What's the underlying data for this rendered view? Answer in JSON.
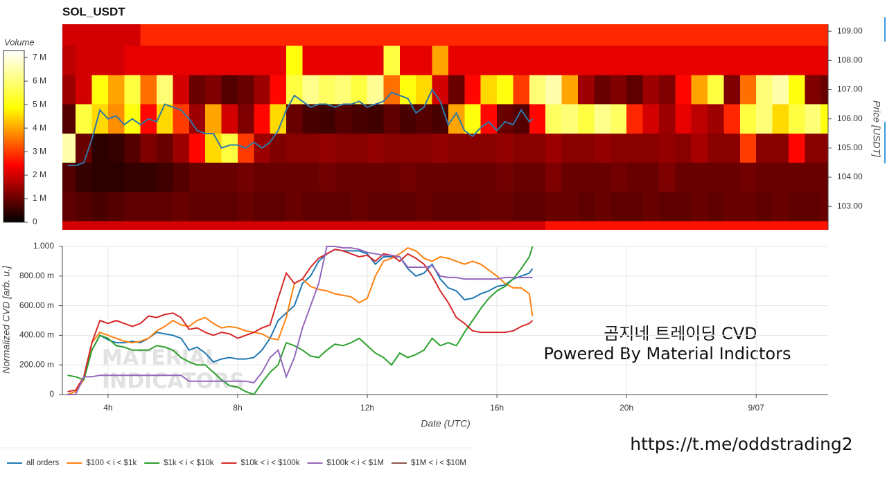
{
  "chart_data": [
    {
      "type": "heatmap",
      "title": "SOL_USDT",
      "y_label": "Price [USDT]",
      "colorbar_label": "Volume",
      "xlim": [
        2.59,
        26.22
      ],
      "ylim": [
        102.2,
        109.24
      ],
      "yticks": [
        {
          "value": 103,
          "label": "103.00"
        },
        {
          "value": 104,
          "label": "104.00"
        },
        {
          "value": 105,
          "label": "105.00"
        },
        {
          "value": 106,
          "label": "106.00"
        },
        {
          "value": 107,
          "label": "107.00"
        },
        {
          "value": 108,
          "label": "108.00"
        },
        {
          "value": 109,
          "label": "109.00"
        }
      ],
      "x_bins": [
        2.5,
        3,
        3.5,
        4,
        4.5,
        5,
        5.5,
        6,
        6.5,
        7,
        7.5,
        8,
        8.5,
        9,
        9.5,
        10,
        10.5,
        11,
        11.5,
        12,
        12.5,
        13,
        13.5,
        14,
        14.5,
        15,
        15.5,
        16,
        16.5,
        17,
        17.5,
        18,
        18.5,
        19,
        19.5,
        20,
        20.5,
        21,
        21.5,
        22,
        22.5,
        23,
        23.5,
        24,
        24.5,
        25,
        25.5,
        26,
        26.5
      ],
      "y_bins": [
        101.5,
        102.5,
        103.5,
        104.5,
        105.5,
        106.5,
        107.5,
        108.5,
        109.5
      ],
      "values": [
        [
          2,
          2,
          2,
          2,
          2,
          2,
          2,
          2,
          2,
          2,
          2,
          2,
          2,
          2,
          2,
          2,
          2,
          2,
          2,
          2,
          2,
          2,
          2,
          2,
          2,
          2,
          2,
          2,
          2,
          2,
          2.6,
          2.6,
          2.6,
          2.6,
          2.6,
          2.6,
          2.6,
          2.6,
          2.6,
          2.6,
          2.6,
          2.6,
          2.6,
          2.6,
          2.6,
          2.6,
          2.6,
          2.6
        ],
        [
          0.9,
          0.8,
          0.7,
          0.8,
          0.9,
          0.9,
          0.9,
          1,
          0.9,
          0.9,
          0.9,
          1,
          0.9,
          0.9,
          1,
          0.9,
          0.9,
          0.9,
          1,
          0.9,
          0.9,
          0.9,
          1,
          0.9,
          0.9,
          0.9,
          1,
          1,
          0.9,
          0.9,
          1,
          1,
          0.9,
          1,
          0.9,
          0.9,
          1,
          0.9,
          0.9,
          1,
          0.9,
          1,
          1,
          0.9,
          1,
          0.9,
          0.9,
          1
        ],
        [
          0.8,
          0.5,
          0.4,
          0.4,
          0.5,
          0.5,
          0.6,
          0.8,
          1,
          1,
          1,
          1.1,
          1,
          1,
          1,
          1,
          1.1,
          1,
          1,
          1,
          1,
          1.1,
          1,
          1,
          1,
          1,
          1,
          1.1,
          1,
          1,
          1.2,
          1,
          1,
          1,
          1.1,
          1,
          1,
          1.2,
          1,
          1,
          1,
          1,
          1.1,
          1,
          1,
          1,
          1,
          1
        ],
        [
          6.5,
          1,
          0.4,
          0.5,
          0.8,
          1.2,
          1,
          1.5,
          2.5,
          4.5,
          5.5,
          3,
          1.5,
          1.2,
          1.3,
          1.3,
          1.4,
          1.3,
          1.3,
          1.4,
          1.3,
          1.3,
          1.3,
          1.4,
          1.3,
          1.3,
          1.3,
          1.4,
          1.3,
          1.3,
          1.5,
          1.3,
          1.3,
          1.4,
          1.3,
          1.3,
          1.3,
          1.4,
          1.3,
          1.6,
          1.3,
          1.3,
          3,
          1.3,
          1.3,
          2.5,
          1.3,
          1.3
        ],
        [
          0.8,
          5.5,
          4.5,
          3.8,
          5,
          2.5,
          4.5,
          3,
          1.5,
          4,
          2,
          1.2,
          2.5,
          4.5,
          1,
          0.7,
          0.6,
          0.8,
          0.7,
          0.6,
          0.9,
          0.7,
          0.8,
          0.7,
          4,
          5,
          2.5,
          1,
          0.8,
          2.5,
          5.8,
          6,
          5.5,
          6.2,
          5.8,
          2.8,
          2,
          1.5,
          2.2,
          1.8,
          1.5,
          2.8,
          5.5,
          6,
          4.5,
          5.5,
          6,
          5
        ],
        [
          1.5,
          2,
          5,
          4,
          5.5,
          3.5,
          6,
          2,
          1,
          1.2,
          0.8,
          1,
          1.5,
          2.5,
          5.5,
          6.2,
          5.8,
          6,
          5.5,
          6.3,
          3.5,
          5,
          4.5,
          2,
          1,
          2.5,
          4.5,
          5,
          3,
          6,
          6.5,
          4,
          1.5,
          1,
          1.2,
          0.9,
          1.5,
          1.2,
          2.5,
          4,
          5.5,
          1.2,
          3.5,
          6,
          6.5,
          5,
          1.2,
          1
        ],
        [
          1.8,
          2,
          2,
          2,
          2.2,
          2.2,
          2.2,
          2.2,
          2.2,
          2.2,
          2.2,
          2.2,
          2.2,
          2.2,
          5,
          2.2,
          2.2,
          2.2,
          2.2,
          2.2,
          5.5,
          2.2,
          2.2,
          4,
          2.2,
          2.2,
          2.2,
          2.2,
          2.2,
          2.2,
          2.2,
          2.2,
          2.2,
          2.2,
          2.2,
          2.2,
          2.2,
          2.2,
          2.2,
          2.2,
          2.2,
          2.2,
          2.2,
          2.2,
          2.2,
          2.2,
          2.2,
          2.2
        ],
        [
          2,
          2,
          2,
          2,
          2,
          2.8,
          2.8,
          2.8,
          2.8,
          2.8,
          2.8,
          2.8,
          2.8,
          2.8,
          2.8,
          2.8,
          2.8,
          2.8,
          2.8,
          2.8,
          2.8,
          2.8,
          2.8,
          2.8,
          2.8,
          2.8,
          2.8,
          2.8,
          2.8,
          2.8,
          2.8,
          2.8,
          2.8,
          2.8,
          2.8,
          2.8,
          2.8,
          2.8,
          2.8,
          2.8,
          2.8,
          2.8,
          2.8,
          2.8,
          2.8,
          2.8,
          2.8,
          2.8
        ]
      ],
      "colors": [
        "#000000",
        "#ff0000",
        "#ffff00",
        "#ffffff"
      ],
      "clim": [
        0,
        7.3
      ],
      "cticks": [
        0,
        {
          "value": 1,
          "label": "1 M"
        },
        {
          "value": 2,
          "label": "2 M"
        },
        {
          "value": 3,
          "label": "3 M"
        },
        {
          "value": 4,
          "label": "4 M"
        },
        {
          "value": 5,
          "label": "5 M"
        },
        {
          "value": 6,
          "label": "6 M"
        },
        {
          "value": 7,
          "label": "7 M"
        }
      ],
      "line": {
        "color": "#2f78a8",
        "x": [
          2.75,
          3,
          3.25,
          3.5,
          3.75,
          4,
          4.25,
          4.5,
          4.75,
          5,
          5.25,
          5.5,
          5.75,
          6,
          6.25,
          6.5,
          6.75,
          7,
          7.25,
          7.5,
          7.75,
          8,
          8.25,
          8.5,
          8.75,
          9,
          9.25,
          9.5,
          9.75,
          10,
          10.25,
          10.5,
          10.75,
          11,
          11.25,
          11.5,
          11.75,
          12,
          12.25,
          12.5,
          12.75,
          13,
          13.25,
          13.5,
          13.75,
          14,
          14.25,
          14.5,
          14.75,
          15,
          15.25,
          15.5,
          15.75,
          16,
          16.25,
          16.5,
          16.75,
          17,
          17.1
        ],
        "values": [
          104.4,
          104.4,
          104.5,
          105.3,
          106.3,
          106.0,
          106.1,
          105.8,
          106.0,
          105.8,
          106.0,
          105.9,
          106.5,
          106.4,
          106.3,
          106.0,
          105.6,
          105.5,
          105.5,
          105.0,
          105.1,
          105.1,
          105.0,
          105.2,
          105.0,
          105.2,
          105.6,
          106.3,
          106.8,
          106.6,
          106.4,
          106.5,
          106.5,
          106.4,
          106.5,
          106.5,
          106.6,
          106.4,
          106.5,
          106.6,
          106.9,
          106.8,
          106.7,
          106.2,
          106.4,
          107.0,
          106.6,
          105.8,
          106.2,
          105.6,
          105.4,
          105.7,
          105.9,
          105.6,
          105.9,
          105.8,
          106.3,
          105.9,
          106.0
        ]
      }
    },
    {
      "type": "line",
      "x_label": "Date (UTC)",
      "y_label": "Normalized CVD [arb. u.]",
      "xlim": [
        2.59,
        26.22
      ],
      "xticks": [
        {
          "value": 4,
          "label": "4h"
        },
        {
          "value": 8,
          "label": "8h"
        },
        {
          "value": 12,
          "label": "12h"
        },
        {
          "value": 16,
          "label": "16h"
        },
        {
          "value": 20,
          "label": "20h"
        },
        {
          "value": 24,
          "label": "9/07"
        }
      ],
      "ylim": [
        0,
        1.0
      ],
      "yticks": [
        0,
        {
          "value": 0.2,
          "label": "200.00 m"
        },
        {
          "value": 0.4,
          "label": "400.00 m"
        },
        {
          "value": 0.6,
          "label": "600.00 m"
        },
        {
          "value": 0.8,
          "label": "800.00 m"
        },
        {
          "value": 1.0,
          "label": "1.000"
        }
      ],
      "grid": true,
      "legend": "bottom-left",
      "x": [
        2.75,
        3,
        3.25,
        3.5,
        3.75,
        4,
        4.25,
        4.5,
        4.75,
        5,
        5.25,
        5.5,
        5.75,
        6,
        6.25,
        6.5,
        6.75,
        7,
        7.25,
        7.5,
        7.75,
        8,
        8.25,
        8.5,
        8.75,
        9,
        9.25,
        9.5,
        9.75,
        10,
        10.25,
        10.5,
        10.75,
        11,
        11.25,
        11.5,
        11.75,
        12,
        12.25,
        12.5,
        12.75,
        13,
        13.25,
        13.5,
        13.75,
        14,
        14.25,
        14.5,
        14.75,
        15,
        15.25,
        15.5,
        15.75,
        16,
        16.25,
        16.5,
        16.75,
        17,
        17.1
      ],
      "series": [
        {
          "name": "all orders",
          "color": "#1f77b4",
          "values": [
            0,
            0.02,
            0.1,
            0.3,
            0.4,
            0.37,
            0.35,
            0.35,
            0.36,
            0.35,
            0.38,
            0.42,
            0.41,
            0.4,
            0.38,
            0.3,
            0.32,
            0.28,
            0.22,
            0.24,
            0.25,
            0.24,
            0.24,
            0.25,
            0.3,
            0.38,
            0.5,
            0.55,
            0.6,
            0.75,
            0.8,
            0.9,
            0.95,
            0.98,
            0.97,
            0.97,
            0.97,
            0.95,
            0.88,
            0.93,
            0.93,
            0.93,
            0.85,
            0.8,
            0.82,
            0.88,
            0.78,
            0.72,
            0.7,
            0.64,
            0.65,
            0.68,
            0.7,
            0.73,
            0.74,
            0.78,
            0.8,
            0.82,
            0.85
          ]
        },
        {
          "name": "$100 < i < $1k",
          "color": "#ff7f0e",
          "values": [
            0,
            0.02,
            0.1,
            0.35,
            0.42,
            0.4,
            0.38,
            0.36,
            0.35,
            0.36,
            0.38,
            0.43,
            0.46,
            0.5,
            0.47,
            0.46,
            0.5,
            0.52,
            0.48,
            0.45,
            0.46,
            0.45,
            0.43,
            0.42,
            0.41,
            0.38,
            0.37,
            0.52,
            0.75,
            0.78,
            0.73,
            0.71,
            0.7,
            0.68,
            0.67,
            0.66,
            0.62,
            0.65,
            0.8,
            0.9,
            0.92,
            0.95,
            0.99,
            0.97,
            0.92,
            0.9,
            0.93,
            0.92,
            0.9,
            0.88,
            0.9,
            0.88,
            0.84,
            0.8,
            0.75,
            0.72,
            0.72,
            0.68,
            0.53
          ]
        },
        {
          "name": "$1k < i < $10k",
          "color": "#2ca02c",
          "values": [
            0.13,
            0.12,
            0.1,
            0.3,
            0.4,
            0.38,
            0.33,
            0.32,
            0.3,
            0.3,
            0.3,
            0.33,
            0.32,
            0.3,
            0.25,
            0.22,
            0.2,
            0.2,
            0.15,
            0.1,
            0.06,
            0.05,
            0.02,
            0,
            0.08,
            0.15,
            0.2,
            0.35,
            0.33,
            0.3,
            0.26,
            0.25,
            0.3,
            0.34,
            0.33,
            0.35,
            0.38,
            0.33,
            0.28,
            0.25,
            0.2,
            0.28,
            0.25,
            0.27,
            0.3,
            0.38,
            0.33,
            0.35,
            0.33,
            0.42,
            0.5,
            0.58,
            0.65,
            0.7,
            0.73,
            0.78,
            0.85,
            0.93,
            1
          ]
        },
        {
          "name": "$10k < i < $100k",
          "color": "#d62728",
          "values": [
            0.02,
            0.03,
            0.12,
            0.35,
            0.5,
            0.48,
            0.5,
            0.48,
            0.46,
            0.48,
            0.53,
            0.52,
            0.54,
            0.55,
            0.52,
            0.44,
            0.45,
            0.42,
            0.4,
            0.42,
            0.41,
            0.38,
            0.4,
            0.42,
            0.45,
            0.47,
            0.65,
            0.82,
            0.75,
            0.78,
            0.86,
            0.92,
            0.95,
            0.98,
            0.97,
            0.95,
            0.93,
            0.94,
            0.9,
            0.95,
            0.94,
            0.9,
            0.95,
            0.92,
            0.88,
            0.8,
            0.7,
            0.62,
            0.52,
            0.48,
            0.43,
            0.42,
            0.42,
            0.42,
            0.42,
            0.43,
            0.46,
            0.48,
            0.5
          ]
        },
        {
          "name": "$100k < i < $1M",
          "color": "#9467bd",
          "values": [
            0,
            0,
            0.12,
            0.12,
            0.13,
            0.13,
            0.13,
            0.13,
            0.13,
            0.13,
            0.13,
            0.13,
            0.13,
            0.13,
            0.13,
            0.09,
            0.09,
            0.09,
            0.09,
            0.09,
            0.09,
            0.09,
            0.09,
            0.08,
            0.15,
            0.25,
            0.3,
            0.12,
            0.25,
            0.45,
            0.6,
            0.75,
            1,
            1,
            0.99,
            0.99,
            0.98,
            0.96,
            0.95,
            0.94,
            0.94,
            0.93,
            0.86,
            0.86,
            0.86,
            0.87,
            0.8,
            0.79,
            0.79,
            0.78,
            0.78,
            0.78,
            0.78,
            0.78,
            0.79,
            0.79,
            0.79,
            0.79,
            0.79
          ]
        },
        {
          "name": "$1M < i < $10M",
          "color": "#8c564b",
          "values": [
            null,
            null,
            null,
            null,
            null,
            null,
            null,
            null,
            null,
            null,
            null,
            null,
            null,
            null,
            null,
            null,
            null,
            null,
            null,
            null,
            null,
            null,
            null,
            null,
            null,
            null,
            null,
            null,
            null,
            null,
            null,
            null,
            null,
            null,
            null,
            null,
            null,
            null,
            null,
            null,
            null,
            null,
            null,
            null,
            null,
            null,
            null,
            null,
            null,
            null,
            null,
            null,
            null,
            null,
            null,
            null,
            null,
            null,
            null
          ]
        }
      ]
    }
  ],
  "annotations": {
    "title": "곰지네 트레이딩 CVD",
    "subtitle": "Powered By Material Indictors",
    "link": "https://t.me/oddstrading2",
    "watermark": [
      "MATERIAL",
      "INDICATORS"
    ]
  }
}
